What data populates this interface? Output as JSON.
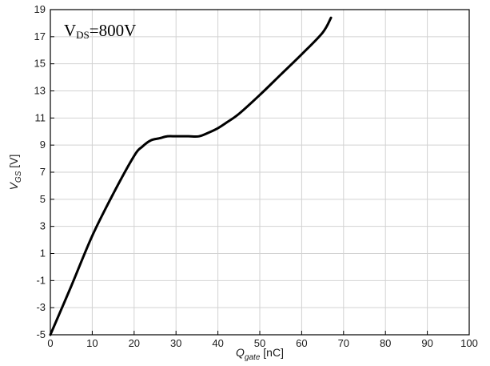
{
  "chart_data": {
    "type": "line",
    "title": "",
    "annotation": {
      "main": "V",
      "sub": "DS",
      "rest": "=800V"
    },
    "xlabel": {
      "main": "Q",
      "sub": "gate",
      "unit": " [nC]"
    },
    "ylabel": {
      "main": "V",
      "sub": "GS",
      "unit": " [V]"
    },
    "xlim": [
      0,
      100
    ],
    "ylim": [
      -5,
      19
    ],
    "xticks": [
      0,
      10,
      20,
      30,
      40,
      50,
      60,
      70,
      80,
      90,
      100
    ],
    "yticks": [
      -5,
      -3,
      -1,
      1,
      3,
      5,
      7,
      9,
      11,
      13,
      15,
      17,
      19
    ],
    "grid": true,
    "series": [
      {
        "x": [
          0,
          5,
          10,
          15,
          20,
          22,
          24,
          26,
          28,
          30,
          33,
          35.5,
          38,
          40,
          42,
          45,
          50,
          55,
          60,
          65,
          67
        ],
        "y": [
          -5,
          -1.4,
          2.3,
          5.4,
          8.2,
          8.9,
          9.35,
          9.5,
          9.65,
          9.65,
          9.65,
          9.65,
          9.95,
          10.25,
          10.65,
          11.3,
          12.7,
          14.2,
          15.7,
          17.3,
          18.4
        ]
      }
    ]
  }
}
